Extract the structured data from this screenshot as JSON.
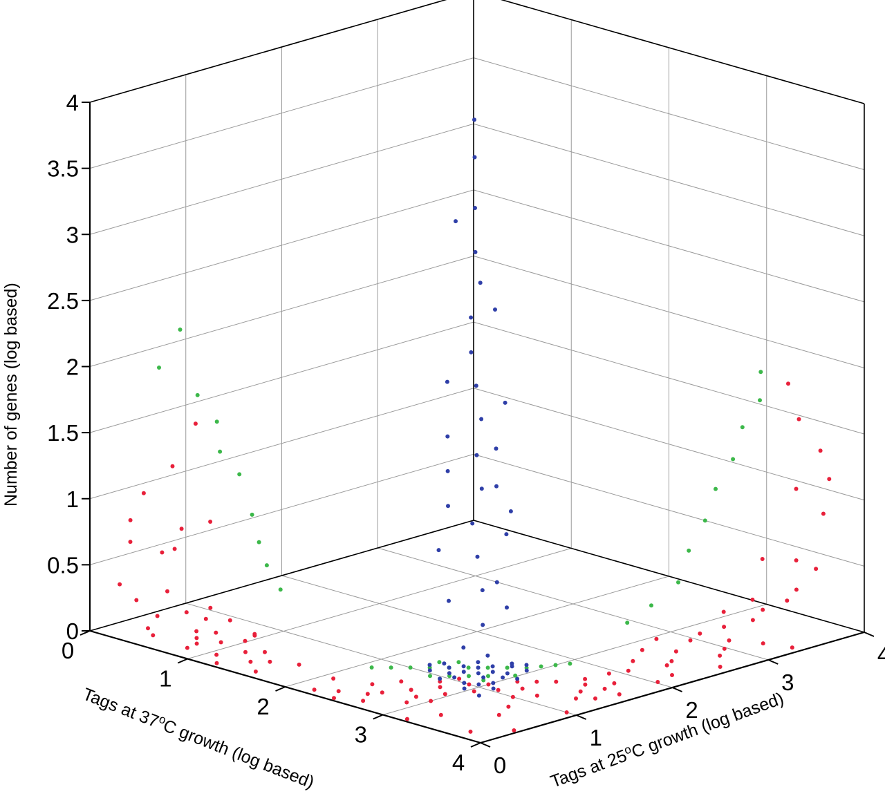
{
  "chart_data": {
    "type": "scatter",
    "title": "",
    "axes": {
      "x": {
        "label": "Tags at 37",
        "label_sup": "o",
        "label_tail": "C growth (log based)",
        "range": [
          0,
          4
        ],
        "ticks": [
          "0",
          "1",
          "2",
          "3",
          "4"
        ]
      },
      "y": {
        "label": "Tags at 25",
        "label_sup": "o",
        "label_tail": "C growth (log based)",
        "range": [
          0,
          4
        ],
        "ticks": [
          "0",
          "1",
          "2",
          "3",
          "4"
        ]
      },
      "z": {
        "label": "Number of genes (log based)",
        "range": [
          0,
          4
        ],
        "ticks": [
          "0",
          "0.5",
          "1",
          "1.5",
          "2",
          "2.5",
          "3",
          "3.5",
          "4"
        ]
      }
    },
    "grid": true,
    "colors": {
      "red": "#e8203a",
      "green": "#3cb84a",
      "blue": "#2f3fa8"
    },
    "series": [
      {
        "color": "red",
        "points": [
          [
            0.03,
            3.72,
            0.3
          ],
          [
            0.06,
            3.5,
            0.95
          ],
          [
            0.08,
            3.22,
            1.1
          ],
          [
            0.1,
            3.0,
            1.38
          ],
          [
            0.2,
            3.32,
            0.52
          ],
          [
            0.25,
            3.0,
            0.67
          ],
          [
            0.08,
            3.66,
            0.62
          ],
          [
            0.15,
            3.4,
            0.5
          ],
          [
            0.3,
            3.35,
            0.7
          ],
          [
            0.12,
            3.7,
            0.8
          ],
          [
            0.28,
            3.8,
            0.25
          ],
          [
            0.4,
            3.6,
            0.3
          ],
          [
            3.68,
            0.04,
            1.1
          ],
          [
            3.6,
            0.05,
            1.3
          ],
          [
            3.4,
            0.07,
            1.5
          ],
          [
            3.3,
            0.08,
            1.75
          ],
          [
            3.68,
            0.1,
            0.85
          ],
          [
            3.5,
            0.2,
            0.48
          ],
          [
            3.6,
            0.3,
            0.3
          ],
          [
            3.7,
            0.5,
            0.28
          ],
          [
            3.35,
            0.4,
            0.5
          ],
          [
            3.8,
            0.3,
            0.5
          ],
          [
            3.45,
            0.15,
            1.0
          ],
          [
            3.55,
            0.6,
            0.2
          ],
          [
            0.4,
            3.4,
            0.1
          ],
          [
            0.5,
            3.3,
            0.05
          ],
          [
            0.6,
            3.5,
            0.02
          ],
          [
            0.7,
            3.6,
            0.01
          ],
          [
            0.8,
            3.7,
            0.01
          ],
          [
            0.9,
            3.55,
            0.01
          ],
          [
            1.0,
            3.4,
            0.01
          ],
          [
            0.3,
            3.7,
            0.02
          ],
          [
            0.2,
            3.5,
            0.05
          ],
          [
            0.45,
            3.8,
            0.02
          ],
          [
            1.1,
            3.8,
            0.01
          ],
          [
            1.2,
            3.6,
            0.01
          ],
          [
            1.3,
            3.5,
            0.01
          ],
          [
            1.4,
            3.75,
            0.01
          ],
          [
            1.5,
            3.65,
            0.01
          ],
          [
            1.0,
            3.3,
            0.03
          ],
          [
            0.85,
            3.85,
            0.02
          ],
          [
            0.65,
            3.2,
            0.05
          ],
          [
            0.35,
            3.1,
            0.06
          ],
          [
            1.6,
            3.9,
            0.01
          ],
          [
            1.7,
            3.55,
            0.01
          ],
          [
            0.75,
            3.45,
            0.03
          ],
          [
            0.95,
            3.25,
            0.02
          ],
          [
            1.25,
            3.95,
            0.01
          ],
          [
            3.2,
            0.35,
            0.15
          ],
          [
            3.4,
            0.55,
            0.08
          ],
          [
            3.3,
            0.75,
            0.05
          ],
          [
            3.5,
            0.9,
            0.02
          ],
          [
            3.6,
            1.05,
            0.01
          ],
          [
            3.7,
            1.2,
            0.01
          ],
          [
            3.4,
            1.35,
            0.01
          ],
          [
            3.2,
            1.5,
            0.01
          ],
          [
            3.6,
            1.65,
            0.01
          ],
          [
            3.8,
            1.8,
            0.01
          ],
          [
            3.5,
            1.95,
            0.01
          ],
          [
            3.3,
            1.1,
            0.02
          ],
          [
            3.9,
            1.4,
            0.01
          ],
          [
            3.75,
            0.8,
            0.03
          ],
          [
            3.15,
            0.6,
            0.1
          ],
          [
            3.45,
            2.1,
            0.01
          ],
          [
            3.65,
            2.25,
            0.01
          ],
          [
            3.85,
            2.0,
            0.01
          ],
          [
            3.55,
            1.55,
            0.01
          ],
          [
            3.25,
            0.95,
            0.03
          ],
          [
            3.95,
            0.7,
            0.02
          ],
          [
            3.1,
            1.25,
            0.02
          ],
          [
            3.35,
            1.75,
            0.01
          ],
          [
            3.7,
            2.4,
            0.01
          ],
          [
            2.9,
            3.0,
            0.0
          ],
          [
            2.8,
            3.2,
            0.0
          ],
          [
            3.0,
            2.9,
            0.0
          ],
          [
            2.7,
            3.4,
            0.0
          ],
          [
            3.1,
            2.7,
            0.0
          ],
          [
            2.6,
            3.6,
            0.0
          ],
          [
            3.2,
            2.6,
            0.0
          ],
          [
            2.75,
            2.95,
            0.0
          ],
          [
            2.95,
            3.3,
            0.0
          ],
          [
            3.05,
            3.1,
            0.0
          ],
          [
            3.15,
            2.95,
            0.0
          ],
          [
            2.85,
            3.5,
            0.0
          ],
          [
            3.3,
            2.5,
            0.0
          ],
          [
            2.5,
            3.3,
            0.0
          ],
          [
            2.55,
            3.7,
            0.0
          ],
          [
            3.4,
            2.3,
            0.0
          ],
          [
            2.4,
            3.5,
            0.0
          ],
          [
            3.5,
            2.4,
            0.0
          ],
          [
            2.65,
            3.85,
            0.0
          ],
          [
            2.35,
            3.8,
            0.0
          ],
          [
            3.6,
            2.55,
            0.0
          ],
          [
            3.25,
            2.8,
            0.0
          ],
          [
            2.9,
            3.65,
            0.0
          ],
          [
            3.35,
            3.0,
            0.0
          ],
          [
            2.2,
            3.9,
            0.0
          ],
          [
            3.7,
            2.7,
            0.0
          ],
          [
            2.45,
            3.95,
            0.0
          ],
          [
            3.8,
            2.6,
            0.0
          ],
          [
            3.0,
            3.5,
            0.0
          ],
          [
            3.45,
            2.85,
            0.0
          ],
          [
            3.9,
            3.0,
            0.0
          ],
          [
            3.6,
            3.4,
            0.0
          ],
          [
            3.3,
            3.7,
            0.0
          ],
          [
            3.95,
            3.6,
            0.0
          ],
          [
            3.2,
            3.95,
            0.0
          ],
          [
            3.75,
            3.85,
            0.0
          ],
          [
            3.5,
            3.2,
            0.0
          ],
          [
            2.1,
            3.6,
            0.0
          ],
          [
            3.85,
            2.4,
            0.0
          ],
          [
            2.7,
            3.1,
            0.0
          ]
        ]
      },
      {
        "color": "green",
        "points": [
          [
            0.02,
            3.3,
            1.85
          ],
          [
            0.04,
            3.1,
            2.1
          ],
          [
            0.12,
            3.0,
            1.6
          ],
          [
            0.22,
            2.9,
            1.4
          ],
          [
            0.3,
            2.95,
            1.2
          ],
          [
            0.45,
            2.9,
            1.05
          ],
          [
            0.6,
            2.92,
            0.78
          ],
          [
            0.7,
            2.95,
            0.6
          ],
          [
            0.8,
            2.97,
            0.45
          ],
          [
            0.95,
            2.98,
            0.3
          ],
          [
            2.95,
            0.01,
            1.75
          ],
          [
            2.98,
            0.05,
            1.55
          ],
          [
            2.9,
            0.15,
            1.35
          ],
          [
            2.95,
            0.3,
            1.15
          ],
          [
            2.92,
            0.45,
            0.95
          ],
          [
            2.96,
            0.6,
            0.75
          ],
          [
            2.94,
            0.75,
            0.55
          ],
          [
            2.98,
            0.9,
            0.35
          ],
          [
            2.9,
            1.1,
            0.2
          ],
          [
            2.85,
            1.3,
            0.1
          ],
          [
            2.4,
            2.9,
            0.0
          ],
          [
            2.5,
            2.8,
            0.0
          ],
          [
            2.6,
            2.7,
            0.0
          ],
          [
            2.7,
            2.6,
            0.0
          ],
          [
            2.8,
            2.5,
            0.0
          ],
          [
            2.9,
            2.4,
            0.0
          ],
          [
            2.3,
            3.0,
            0.0
          ],
          [
            2.2,
            3.1,
            0.0
          ],
          [
            2.95,
            2.3,
            0.0
          ],
          [
            2.85,
            2.75,
            0.0
          ],
          [
            2.75,
            2.85,
            0.0
          ],
          [
            2.65,
            2.95,
            0.0
          ],
          [
            2.55,
            3.05,
            0.0
          ],
          [
            3.0,
            2.2,
            0.0
          ],
          [
            2.45,
            2.65,
            0.0
          ],
          [
            2.35,
            2.75,
            0.0
          ],
          [
            2.98,
            2.6,
            0.0
          ],
          [
            2.9,
            2.85,
            0.0
          ],
          [
            2.1,
            3.2,
            0.0
          ],
          [
            3.05,
            2.1,
            0.0
          ]
        ]
      },
      {
        "color": "blue",
        "points": [
          [
            0.4,
            0.4,
            3.2
          ],
          [
            0.6,
            0.6,
            3.0
          ],
          [
            0.8,
            0.8,
            2.7
          ],
          [
            1.0,
            1.0,
            2.45
          ],
          [
            1.1,
            1.05,
            2.25
          ],
          [
            1.2,
            1.25,
            2.05
          ],
          [
            1.35,
            1.4,
            1.85
          ],
          [
            1.5,
            1.5,
            1.65
          ],
          [
            1.65,
            1.6,
            1.45
          ],
          [
            1.8,
            1.8,
            1.25
          ],
          [
            1.95,
            1.9,
            1.05
          ],
          [
            2.05,
            2.1,
            0.85
          ],
          [
            2.2,
            2.2,
            0.65
          ],
          [
            2.35,
            2.3,
            0.45
          ],
          [
            2.5,
            2.45,
            0.25
          ],
          [
            0.7,
            0.9,
            2.6
          ],
          [
            1.3,
            1.1,
            2.1
          ],
          [
            1.4,
            1.7,
            1.7
          ],
          [
            1.6,
            1.3,
            1.5
          ],
          [
            1.9,
            1.7,
            1.3
          ],
          [
            2.1,
            1.9,
            1.1
          ],
          [
            1.7,
            2.0,
            1.15
          ],
          [
            2.3,
            2.0,
            0.8
          ],
          [
            2.0,
            2.4,
            0.7
          ],
          [
            2.4,
            2.2,
            0.5
          ],
          [
            2.25,
            2.55,
            0.4
          ],
          [
            2.55,
            2.25,
            0.35
          ],
          [
            1.85,
            2.15,
            0.95
          ],
          [
            2.15,
            1.8,
            0.9
          ],
          [
            1.55,
            1.85,
            1.35
          ],
          [
            2.45,
            2.6,
            0.1
          ],
          [
            2.6,
            2.5,
            0.05
          ],
          [
            2.55,
            2.7,
            0.0
          ],
          [
            2.7,
            2.55,
            0.0
          ],
          [
            2.5,
            2.8,
            0.0
          ],
          [
            2.8,
            2.45,
            0.0
          ],
          [
            2.65,
            2.65,
            0.0
          ],
          [
            2.75,
            2.75,
            0.0
          ],
          [
            2.6,
            2.9,
            0.0
          ],
          [
            2.9,
            2.6,
            0.0
          ],
          [
            2.85,
            2.8,
            0.0
          ],
          [
            2.7,
            2.95,
            0.0
          ],
          [
            2.95,
            2.7,
            0.0
          ],
          [
            2.4,
            2.75,
            0.0
          ],
          [
            2.75,
            2.4,
            0.0
          ],
          [
            2.85,
            3.0,
            0.0
          ],
          [
            3.0,
            2.85,
            0.0
          ],
          [
            2.55,
            2.55,
            0.0
          ],
          [
            2.95,
            2.95,
            0.0
          ],
          [
            2.45,
            2.95,
            0.0
          ],
          [
            2.95,
            2.45,
            0.0
          ],
          [
            2.65,
            3.05,
            0.0
          ],
          [
            3.05,
            2.65,
            0.0
          ],
          [
            2.8,
            2.65,
            0.0
          ],
          [
            2.65,
            2.8,
            0.0
          ],
          [
            3.1,
            2.95,
            0.0
          ],
          [
            2.95,
            3.1,
            0.0
          ],
          [
            2.35,
            2.85,
            0.0
          ],
          [
            2.85,
            2.35,
            0.0
          ],
          [
            3.15,
            3.15,
            0.0
          ]
        ]
      }
    ]
  }
}
